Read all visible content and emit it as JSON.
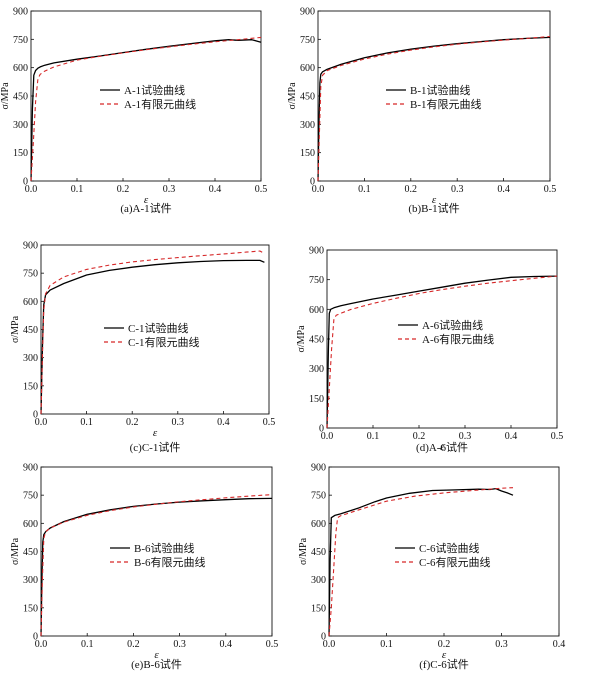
{
  "chart_data": [
    {
      "type": "line",
      "caption": "(a)A-1试件",
      "xlabel": "ε",
      "ylabel": "σ/MPa",
      "xlim": [
        0,
        0.5
      ],
      "ylim": [
        0,
        900
      ],
      "xticks": [
        "0.0",
        "0.1",
        "0.2",
        "0.3",
        "0.4",
        "0.5"
      ],
      "yticks": [
        "0",
        "150",
        "300",
        "450",
        "600",
        "750",
        "900"
      ],
      "legend_position": "center",
      "series": [
        {
          "name": "A-1试验曲线",
          "style": "solid",
          "color": "#000000",
          "x": [
            0,
            0.003,
            0.006,
            0.01,
            0.015,
            0.02,
            0.03,
            0.05,
            0.1,
            0.15,
            0.2,
            0.25,
            0.3,
            0.35,
            0.4,
            0.43,
            0.45,
            0.48,
            0.5
          ],
          "y": [
            0,
            380,
            560,
            585,
            597,
            604,
            613,
            625,
            645,
            662,
            680,
            697,
            713,
            728,
            742,
            748,
            745,
            748,
            735
          ]
        },
        {
          "name": "A-1有限元曲线",
          "style": "dashed",
          "color": "#d62728",
          "x": [
            0,
            0.005,
            0.01,
            0.015,
            0.02,
            0.03,
            0.05,
            0.1,
            0.15,
            0.2,
            0.25,
            0.3,
            0.35,
            0.4,
            0.45,
            0.5
          ],
          "y": [
            0,
            200,
            420,
            540,
            565,
            582,
            604,
            640,
            660,
            678,
            695,
            710,
            724,
            737,
            748,
            760
          ]
        }
      ]
    },
    {
      "type": "line",
      "caption": "(b)B-1试件",
      "xlabel": "ε",
      "ylabel": "σ/MPa",
      "xlim": [
        0,
        0.5
      ],
      "ylim": [
        0,
        900
      ],
      "xticks": [
        "0.0",
        "0.1",
        "0.2",
        "0.3",
        "0.4",
        "0.5"
      ],
      "yticks": [
        "0",
        "150",
        "300",
        "450",
        "600",
        "750",
        "900"
      ],
      "legend_position": "center",
      "series": [
        {
          "name": "B-1试验曲线",
          "style": "solid",
          "color": "#000000",
          "x": [
            0,
            0.002,
            0.004,
            0.006,
            0.01,
            0.02,
            0.05,
            0.1,
            0.15,
            0.2,
            0.25,
            0.3,
            0.35,
            0.4,
            0.45,
            0.5
          ],
          "y": [
            0,
            300,
            520,
            565,
            578,
            592,
            618,
            652,
            678,
            698,
            714,
            727,
            738,
            748,
            755,
            760
          ]
        },
        {
          "name": "B-1有限元曲线",
          "style": "dashed",
          "color": "#d62728",
          "x": [
            0,
            0.003,
            0.006,
            0.01,
            0.02,
            0.05,
            0.1,
            0.15,
            0.2,
            0.25,
            0.3,
            0.35,
            0.4,
            0.45,
            0.5
          ],
          "y": [
            0,
            250,
            500,
            560,
            585,
            612,
            646,
            672,
            693,
            710,
            724,
            736,
            746,
            755,
            765
          ]
        }
      ]
    },
    {
      "type": "line",
      "caption": "(c)C-1试件",
      "xlabel": "ε",
      "ylabel": "σ/MPa",
      "xlim": [
        0,
        0.5
      ],
      "ylim": [
        0,
        900
      ],
      "xticks": [
        "0.0",
        "0.1",
        "0.2",
        "0.3",
        "0.4",
        "0.5"
      ],
      "yticks": [
        "0",
        "150",
        "300",
        "450",
        "600",
        "750",
        "900"
      ],
      "legend_position": "center",
      "series": [
        {
          "name": "C-1试验曲线",
          "style": "solid",
          "color": "#000000",
          "x": [
            0,
            0.003,
            0.006,
            0.01,
            0.02,
            0.05,
            0.1,
            0.15,
            0.2,
            0.25,
            0.3,
            0.35,
            0.4,
            0.45,
            0.48,
            0.49
          ],
          "y": [
            0,
            350,
            580,
            635,
            660,
            695,
            740,
            765,
            782,
            795,
            805,
            812,
            817,
            818,
            818,
            808
          ]
        },
        {
          "name": "C-1有限元曲线",
          "style": "dashed",
          "color": "#d62728",
          "x": [
            0,
            0.003,
            0.006,
            0.01,
            0.02,
            0.05,
            0.1,
            0.15,
            0.2,
            0.25,
            0.3,
            0.35,
            0.4,
            0.45,
            0.48,
            0.49
          ],
          "y": [
            0,
            300,
            550,
            640,
            685,
            730,
            770,
            793,
            810,
            822,
            833,
            843,
            852,
            862,
            868,
            855
          ]
        }
      ]
    },
    {
      "type": "line",
      "caption": "(d)A-6试件",
      "xlabel": "ε",
      "ylabel": "σ/MPa",
      "xlim": [
        0,
        0.5
      ],
      "ylim": [
        0,
        900
      ],
      "xticks": [
        "0.0",
        "0.1",
        "0.2",
        "0.3",
        "0.4",
        "0.5"
      ],
      "yticks": [
        "0",
        "150",
        "300",
        "450",
        "600",
        "750",
        "900"
      ],
      "legend_position": "center",
      "series": [
        {
          "name": "A-6试验曲线",
          "style": "solid",
          "color": "#000000",
          "x": [
            0,
            0.003,
            0.005,
            0.008,
            0.015,
            0.03,
            0.05,
            0.1,
            0.15,
            0.2,
            0.25,
            0.3,
            0.35,
            0.4,
            0.45,
            0.5
          ],
          "y": [
            0,
            400,
            580,
            600,
            608,
            618,
            628,
            652,
            672,
            692,
            712,
            732,
            748,
            762,
            766,
            768
          ]
        },
        {
          "name": "A-6有限元曲线",
          "style": "dashed",
          "color": "#d62728",
          "x": [
            0,
            0.005,
            0.01,
            0.015,
            0.02,
            0.03,
            0.05,
            0.1,
            0.15,
            0.2,
            0.25,
            0.3,
            0.35,
            0.4,
            0.45,
            0.5
          ],
          "y": [
            0,
            200,
            400,
            550,
            570,
            580,
            598,
            630,
            656,
            680,
            700,
            717,
            732,
            745,
            757,
            768
          ]
        }
      ]
    },
    {
      "type": "line",
      "caption": "(e)B-6试件",
      "xlabel": "ε",
      "ylabel": "σ/MPa",
      "xlim": [
        0,
        0.5
      ],
      "ylim": [
        0,
        900
      ],
      "xticks": [
        "0.0",
        "0.1",
        "0.2",
        "0.3",
        "0.4",
        "0.5"
      ],
      "yticks": [
        "0",
        "150",
        "300",
        "450",
        "600",
        "750",
        "900"
      ],
      "legend_position": "center",
      "series": [
        {
          "name": "B-6试验曲线",
          "style": "solid",
          "color": "#000000",
          "x": [
            0,
            0.002,
            0.004,
            0.006,
            0.01,
            0.02,
            0.05,
            0.1,
            0.15,
            0.2,
            0.25,
            0.3,
            0.35,
            0.4,
            0.45,
            0.5
          ],
          "y": [
            0,
            300,
            500,
            540,
            555,
            575,
            610,
            648,
            672,
            690,
            703,
            713,
            720,
            726,
            731,
            733
          ]
        },
        {
          "name": "B-6有限元曲线",
          "style": "dashed",
          "color": "#d62728",
          "x": [
            0,
            0.003,
            0.006,
            0.01,
            0.02,
            0.05,
            0.1,
            0.15,
            0.2,
            0.25,
            0.3,
            0.35,
            0.4,
            0.45,
            0.5
          ],
          "y": [
            0,
            300,
            520,
            555,
            575,
            607,
            643,
            668,
            687,
            702,
            715,
            726,
            736,
            745,
            753
          ]
        }
      ]
    },
    {
      "type": "line",
      "caption": "(f)C-6试件",
      "xlabel": "ε",
      "ylabel": "σ/MPa",
      "xlim": [
        0,
        0.4
      ],
      "ylim": [
        0,
        900
      ],
      "xticks": [
        "0.0",
        "0.1",
        "0.2",
        "0.3",
        "0.4"
      ],
      "yticks": [
        "0",
        "150",
        "300",
        "450",
        "600",
        "750",
        "900"
      ],
      "legend_position": "center",
      "series": [
        {
          "name": "C-6试验曲线",
          "style": "solid",
          "color": "#000000",
          "x": [
            0,
            0.002,
            0.004,
            0.01,
            0.02,
            0.05,
            0.08,
            0.1,
            0.14,
            0.18,
            0.22,
            0.26,
            0.28,
            0.29,
            0.3,
            0.31,
            0.32
          ],
          "y": [
            0,
            400,
            630,
            642,
            650,
            680,
            715,
            735,
            760,
            775,
            778,
            782,
            780,
            785,
            772,
            762,
            750
          ]
        },
        {
          "name": "C-6有限元曲线",
          "style": "dashed",
          "color": "#d62728",
          "x": [
            0,
            0.004,
            0.008,
            0.012,
            0.015,
            0.02,
            0.05,
            0.1,
            0.15,
            0.2,
            0.25,
            0.3,
            0.32
          ],
          "y": [
            0,
            150,
            350,
            550,
            630,
            640,
            670,
            718,
            745,
            762,
            775,
            787,
            790
          ]
        }
      ]
    }
  ]
}
